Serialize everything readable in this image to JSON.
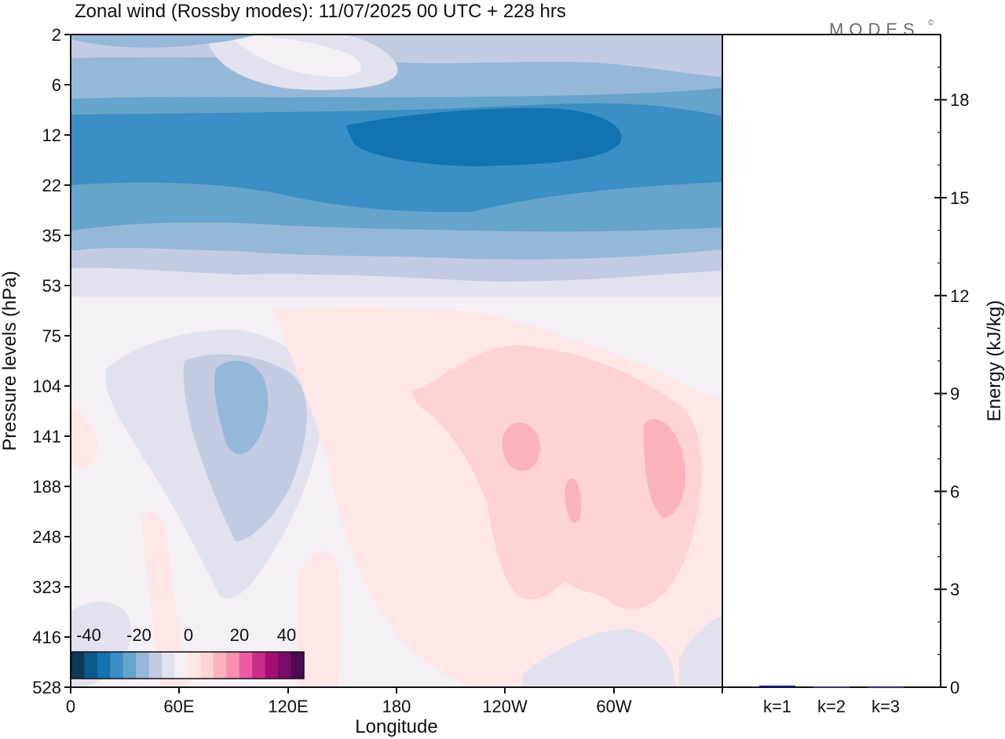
{
  "brand": "MODES",
  "brand_mark": "©",
  "chart_data": [
    {
      "type": "heatmap",
      "title": "Zonal wind (Rossby modes):  11/07/2025  00 UTC  + 228 hrs",
      "xlabel": "Longitude",
      "ylabel": "Pressure levels (hPa)",
      "x_ticks": [
        "0",
        "60E",
        "120E",
        "180",
        "120W",
        "60W"
      ],
      "y_ticks": [
        "2",
        "6",
        "12",
        "22",
        "35",
        "53",
        "75",
        "104",
        "141",
        "188",
        "248",
        "323",
        "416",
        "528"
      ],
      "colorbar": {
        "ticks": [
          "-40",
          "-20",
          "0",
          "20",
          "40"
        ],
        "range": [
          -45,
          45
        ],
        "step": 5,
        "colors": [
          "#0b3a5c",
          "#0c5a8d",
          "#1274b0",
          "#3a8fc4",
          "#66a4cc",
          "#96b8d8",
          "#c3cbe3",
          "#e2e1ee",
          "#f5f0f5",
          "#ffe7e7",
          "#fdd3d5",
          "#fab2bd",
          "#f78fb0",
          "#ec5ca3",
          "#cc2c8c",
          "#a50e74",
          "#7a0b6b",
          "#4d0a55"
        ]
      },
      "series": [
        {
          "name": "stratospheric easterlies",
          "level_range_hPa": [
            6,
            35
          ],
          "values_approx": [
            -30,
            -15
          ]
        },
        {
          "name": "tropospheric weak easterlies (60E-120E)",
          "level_range_hPa": [
            75,
            323
          ],
          "values_approx": [
            -15,
            -5
          ]
        },
        {
          "name": "tropospheric weak westerlies (180-60W)",
          "level_range_hPa": [
            75,
            416
          ],
          "values_approx": [
            5,
            15
          ]
        }
      ]
    },
    {
      "type": "bar",
      "categories": [
        "k=1",
        "k=2",
        "k=3"
      ],
      "values": [
        0.05,
        0.02,
        0.01
      ],
      "ylabel": "Energy (kJ/kg)",
      "y_ticks": [
        "0",
        "3",
        "6",
        "9",
        "12",
        "15",
        "18"
      ],
      "ylim": [
        0,
        20
      ],
      "bar_colors": [
        "#1a1a8c",
        "#3a3a8c",
        "#3a3a8c"
      ]
    }
  ]
}
